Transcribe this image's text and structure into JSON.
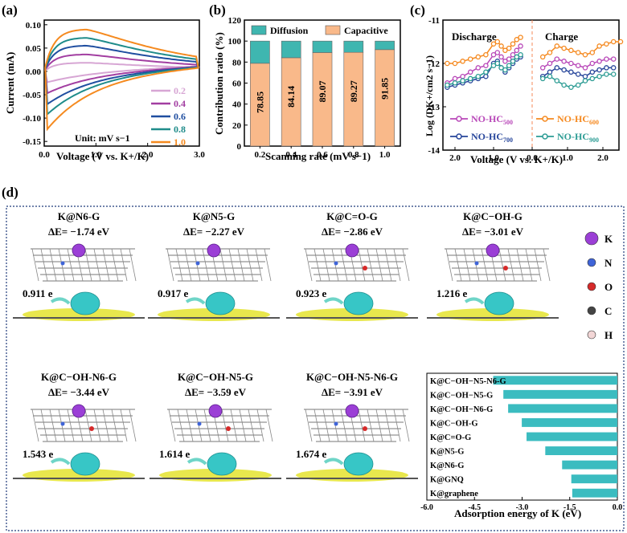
{
  "panel_labels": {
    "a": "(a)",
    "b": "(b)",
    "c": "(c)",
    "d": "(d)"
  },
  "colors": {
    "diffusion": "#3fb6b0",
    "capacitive": "#f9b98a",
    "bar_d": "#3bbcc0",
    "hc500": "#b847b8",
    "hc600": "#f5891f",
    "hc700": "#25449a",
    "hc900": "#2c9c94",
    "cv_0_2": "#d7a6d4",
    "cv_0_4": "#a23ea1",
    "cv_0_6": "#1f4ea0",
    "cv_0_8": "#1f8c8a",
    "cv_1_0": "#f58a1f"
  },
  "chart_data": [
    {
      "id": "a",
      "type": "line",
      "title": "(a)",
      "xlabel": "Voltage (V vs. K+/K)",
      "ylabel": "Current (mA)",
      "xlim": [
        0.0,
        3.0
      ],
      "ylim": [
        -0.16,
        0.11
      ],
      "xticks": [
        "0.0",
        "1.0",
        "2.0",
        "3.0"
      ],
      "yticks": [
        "0.10",
        "0.05",
        "0.00",
        "-0.05",
        "-0.10",
        "-0.15"
      ],
      "annotation": "Unit: mV s−1",
      "series": [
        {
          "name": "0.2",
          "peak_current": 0.018,
          "min_current": -0.025,
          "color_key": "cv_0_2"
        },
        {
          "name": "0.4",
          "peak_current": 0.036,
          "min_current": -0.05,
          "color_key": "cv_0_4"
        },
        {
          "name": "0.6",
          "peak_current": 0.055,
          "min_current": -0.075,
          "color_key": "cv_0_6"
        },
        {
          "name": "0.8",
          "peak_current": 0.072,
          "min_current": -0.098,
          "color_key": "cv_0_8"
        },
        {
          "name": "1.0",
          "peak_current": 0.09,
          "min_current": -0.132,
          "color_key": "cv_1_0"
        }
      ]
    },
    {
      "id": "b",
      "type": "bar",
      "title": "(b)",
      "xlabel": "Scanning rate (mV s−1)",
      "ylabel": "Contribution ratio (%)",
      "ylim": [
        0,
        120
      ],
      "yticks": [
        "0",
        "20",
        "40",
        "60",
        "80",
        "100",
        "120"
      ],
      "categories": [
        "0.2",
        "0.4",
        "0.6",
        "0.8",
        "1.0"
      ],
      "series": [
        {
          "name": "Capacitive",
          "values": [
            78.85,
            84.14,
            89.07,
            89.27,
            91.85
          ],
          "color_key": "capacitive"
        },
        {
          "name": "Diffusion",
          "values": [
            21.15,
            15.86,
            10.93,
            10.73,
            8.15
          ],
          "color_key": "diffusion"
        }
      ],
      "value_labels": [
        "78.85",
        "84.14",
        "89.07",
        "89.27",
        "91.85"
      ]
    },
    {
      "id": "c",
      "type": "scatter",
      "title": "(c)",
      "xlabel": "Voltage (V vs. K+/K)",
      "ylabel": "Log (DK+/cm2 s−1)",
      "ylim": [
        -14,
        -11
      ],
      "yticks": [
        "-11",
        "-12",
        "-13",
        "-14"
      ],
      "left_xticks": [
        "2.0",
        "1.0",
        "0.0"
      ],
      "right_xticks": [
        "1.0",
        "2.0"
      ],
      "sections": [
        "Discharge",
        "Charge"
      ],
      "legend": [
        {
          "name": "NO-HC",
          "sub": "500",
          "color_key": "hc500"
        },
        {
          "name": "NO-HC",
          "sub": "600",
          "color_key": "hc600"
        },
        {
          "name": "NO-HC",
          "sub": "700",
          "color_key": "hc700"
        },
        {
          "name": "NO-HC",
          "sub": "900",
          "color_key": "hc900"
        }
      ],
      "series": [
        {
          "name": "NO-HC600",
          "color_key": "hc600",
          "discharge_x": [
            2.2,
            2.0,
            1.8,
            1.6,
            1.4,
            1.2,
            1.0,
            0.9,
            0.8,
            0.7,
            0.6,
            0.5,
            0.4,
            0.3
          ],
          "discharge_y": [
            -12.0,
            -12.0,
            -11.95,
            -11.9,
            -11.85,
            -11.8,
            -11.55,
            -11.5,
            -11.6,
            -11.7,
            -11.65,
            -11.55,
            -11.45,
            -11.4
          ],
          "charge_x": [
            0.3,
            0.5,
            0.7,
            0.9,
            1.1,
            1.3,
            1.5,
            1.7,
            1.9,
            2.1,
            2.3,
            2.5
          ],
          "charge_y": [
            -11.85,
            -11.75,
            -11.6,
            -11.65,
            -11.7,
            -11.75,
            -11.8,
            -11.75,
            -11.6,
            -11.55,
            -11.5,
            -11.5
          ]
        },
        {
          "name": "NO-HC500",
          "color_key": "hc500",
          "discharge_x": [
            2.2,
            2.0,
            1.8,
            1.6,
            1.4,
            1.2,
            1.0,
            0.9,
            0.8,
            0.7,
            0.6,
            0.5,
            0.4,
            0.3
          ],
          "discharge_y": [
            -12.45,
            -12.35,
            -12.3,
            -12.2,
            -12.1,
            -12.05,
            -11.8,
            -11.75,
            -11.85,
            -11.95,
            -11.9,
            -11.8,
            -11.7,
            -11.6
          ],
          "charge_x": [
            0.3,
            0.5,
            0.7,
            0.9,
            1.1,
            1.3,
            1.5,
            1.7,
            1.9,
            2.1,
            2.3
          ],
          "charge_y": [
            -12.1,
            -12.0,
            -11.9,
            -11.95,
            -12.0,
            -12.05,
            -12.1,
            -12.0,
            -11.95,
            -11.9,
            -11.9
          ]
        },
        {
          "name": "NO-HC700",
          "color_key": "hc700",
          "discharge_x": [
            2.2,
            2.0,
            1.8,
            1.6,
            1.4,
            1.2,
            1.0,
            0.9,
            0.8,
            0.7,
            0.6,
            0.5,
            0.4,
            0.3
          ],
          "discharge_y": [
            -12.55,
            -12.5,
            -12.45,
            -12.4,
            -12.35,
            -12.3,
            -12.0,
            -11.95,
            -12.1,
            -12.2,
            -12.1,
            -12.0,
            -11.9,
            -11.85
          ],
          "charge_x": [
            0.3,
            0.5,
            0.7,
            0.9,
            1.1,
            1.3,
            1.5,
            1.7,
            1.9,
            2.1,
            2.3
          ],
          "charge_y": [
            -12.3,
            -12.2,
            -12.1,
            -12.15,
            -12.2,
            -12.25,
            -12.3,
            -12.2,
            -12.15,
            -12.1,
            -12.1
          ]
        },
        {
          "name": "NO-HC900",
          "color_key": "hc900",
          "discharge_x": [
            2.2,
            2.0,
            1.8,
            1.6,
            1.4,
            1.2,
            1.0,
            0.9,
            0.8,
            0.7,
            0.6,
            0.5,
            0.4,
            0.3
          ],
          "discharge_y": [
            -12.5,
            -12.45,
            -12.4,
            -12.35,
            -12.3,
            -12.2,
            -12.05,
            -12.0,
            -12.1,
            -12.15,
            -12.05,
            -11.95,
            -11.85,
            -11.8
          ],
          "charge_x": [
            0.3,
            0.5,
            0.7,
            0.9,
            1.1,
            1.3,
            1.5,
            1.7,
            1.9,
            2.1,
            2.3
          ],
          "charge_y": [
            -12.35,
            -12.3,
            -12.4,
            -12.5,
            -12.55,
            -12.5,
            -12.4,
            -12.35,
            -12.3,
            -12.25,
            -12.25
          ]
        }
      ]
    },
    {
      "id": "d-bar",
      "type": "bar",
      "orientation": "horizontal",
      "xlabel": "Adsorption energy of K (eV)",
      "xlim": [
        -6.0,
        0.0
      ],
      "xticks": [
        "-6.0",
        "-4.5",
        "-3.0",
        "-1.5",
        "0.0"
      ],
      "categories": [
        "K@C−OH−N5-N6-G",
        "K@C−OH−N5-G",
        "K@C−OH−N6-G",
        "K@C−OH-G",
        "K@C=O-G",
        "K@N5-G",
        "K@N6-G",
        "K@GNQ",
        "K@graphene"
      ],
      "values": [
        -3.91,
        -3.59,
        -3.44,
        -3.01,
        -2.86,
        -2.27,
        -1.74,
        -1.45,
        -1.42
      ]
    }
  ],
  "panel_d": {
    "structures": [
      {
        "title": "K@N6-G",
        "energy": "ΔE= −1.74 eV",
        "charge": "0.911 e"
      },
      {
        "title": "K@N5-G",
        "energy": "ΔE= −2.27 eV",
        "charge": "0.917 e"
      },
      {
        "title": "K@C=O-G",
        "energy": "ΔE= −2.86 eV",
        "charge": "0.923 e"
      },
      {
        "title": "K@C−OH-G",
        "energy": "ΔE= −3.01 eV",
        "charge": "1.216 e"
      },
      {
        "title": "K@C−OH-N6-G",
        "energy": "ΔE= −3.44 eV",
        "charge": "1.543 e"
      },
      {
        "title": "K@C−OH-N5-G",
        "energy": "ΔE= −3.59 eV",
        "charge": "1.614 e"
      },
      {
        "title": "K@C−OH-N5-N6-G",
        "energy": "ΔE= −3.91 eV",
        "charge": "1.674 e"
      }
    ],
    "atom_legend": [
      {
        "symbol": "K",
        "color": "#9b3fd6"
      },
      {
        "symbol": "N",
        "color": "#3f64d8"
      },
      {
        "symbol": "O",
        "color": "#d62a2a"
      },
      {
        "symbol": "C",
        "color": "#444444"
      },
      {
        "symbol": "H",
        "color": "#f2d6d6"
      }
    ]
  }
}
